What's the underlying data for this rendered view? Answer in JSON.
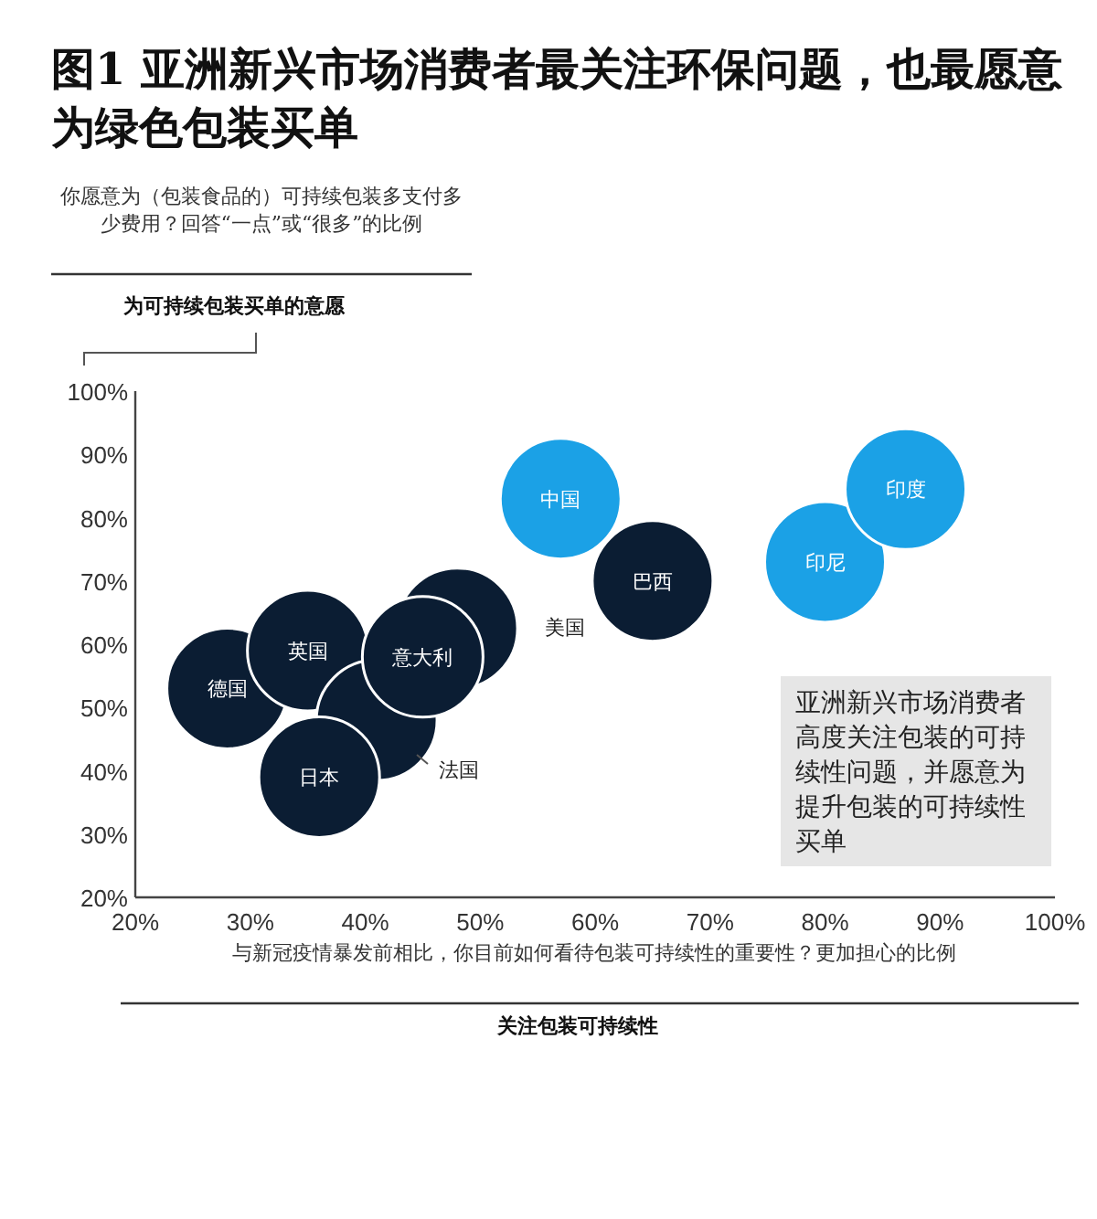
{
  "chart_data": {
    "type": "bubble",
    "title": "图1 亚洲新兴市场消费者最关注环保问题，也最愿意为绿色包装买单",
    "xlabel": "关注包装可持续性",
    "ylabel": "为可持续包装买单的意愿",
    "x": [
      28,
      35,
      48,
      41,
      36,
      45,
      65,
      57,
      80,
      87
    ],
    "values": [
      53,
      59,
      62.5,
      48,
      39,
      58,
      70,
      83,
      73,
      84.5
    ],
    "sizes": [
      1,
      1,
      1,
      1,
      1,
      1,
      1,
      1,
      1,
      1
    ],
    "colors": [
      "#0b1d33",
      "#0b1d33",
      "#0b1d33",
      "#0b1d33",
      "#0b1d33",
      "#0b1d33",
      "#0b1d33",
      "#1ba1e6",
      "#1ba1e6",
      "#1ba1e6"
    ],
    "xlim": [
      20,
      100
    ],
    "ylim": [
      20,
      100
    ],
    "xticks": [
      {
        "value": 20,
        "label": "20%"
      },
      {
        "value": 30,
        "label": "30%"
      },
      {
        "value": 40,
        "label": "40%"
      },
      {
        "value": 50,
        "label": "50%"
      },
      {
        "value": 60,
        "label": "60%"
      },
      {
        "value": 70,
        "label": "70%"
      },
      {
        "value": 80,
        "label": "80%"
      },
      {
        "value": 90,
        "label": "90%"
      },
      {
        "value": 100,
        "label": "100%"
      }
    ],
    "yticks": [
      {
        "value": 20,
        "label": "20%"
      },
      {
        "value": 30,
        "label": "30%"
      },
      {
        "value": 40,
        "label": "40%"
      },
      {
        "value": 50,
        "label": "50%"
      },
      {
        "value": 60,
        "label": "60%"
      },
      {
        "value": 70,
        "label": "70%"
      },
      {
        "value": 80,
        "label": "80%"
      },
      {
        "value": 90,
        "label": "90%"
      },
      {
        "value": 100,
        "label": "100%"
      }
    ],
    "grid": false,
    "annotations": [
      "你愿意为（包装食品的）可持续包装多支付多少费用？回答“一点”或“很多”的比例",
      "与新冠疫情暴发前相比，你目前如何看待包装可持续性的重要性？更加担心的比例",
      "亚洲新兴市场消费者高度关注包装的可持续性问题，并愿意为提升包装的可持续性买单",
      {
        "text": "德国",
        "x": 28,
        "y": 53
      },
      {
        "text": "英国",
        "x": 35,
        "y": 59
      },
      {
        "text": "日本",
        "x": 36,
        "y": 39
      },
      {
        "text": "意大利",
        "x": 45,
        "y": 58
      },
      {
        "text": "巴西",
        "x": 65,
        "y": 70
      },
      {
        "text": "中国",
        "x": 57,
        "y": 83
      },
      {
        "text": "印尼",
        "x": 80,
        "y": 73
      },
      {
        "text": "印度",
        "x": 87,
        "y": 84.5
      },
      "美国",
      "法国"
    ]
  }
}
